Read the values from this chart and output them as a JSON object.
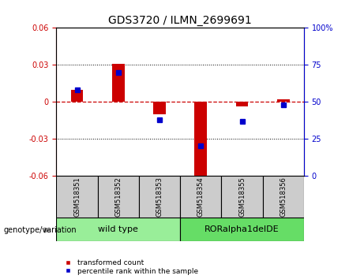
{
  "title": "GDS3720 / ILMN_2699691",
  "samples": [
    "GSM518351",
    "GSM518352",
    "GSM518353",
    "GSM518354",
    "GSM518355",
    "GSM518356"
  ],
  "red_values": [
    0.01,
    0.031,
    -0.01,
    -0.06,
    -0.004,
    0.002
  ],
  "blue_percentiles": [
    58,
    70,
    38,
    20,
    37,
    48
  ],
  "left_ylim": [
    -0.06,
    0.06
  ],
  "right_ylim": [
    0,
    100
  ],
  "left_yticks": [
    -0.06,
    -0.03,
    0,
    0.03,
    0.06
  ],
  "right_yticks": [
    0,
    25,
    50,
    75,
    100
  ],
  "red_color": "#cc0000",
  "blue_color": "#0000cc",
  "bar_width": 0.3,
  "genotype_label": "genotype/variation",
  "legend_red": "transformed count",
  "legend_blue": "percentile rank within the sample",
  "zero_line_color": "#cc0000",
  "plot_bg": "#ffffff",
  "outer_bg": "#ffffff",
  "label_bg": "#cccccc",
  "wt_color": "#99ee99",
  "ror_color": "#66dd66"
}
